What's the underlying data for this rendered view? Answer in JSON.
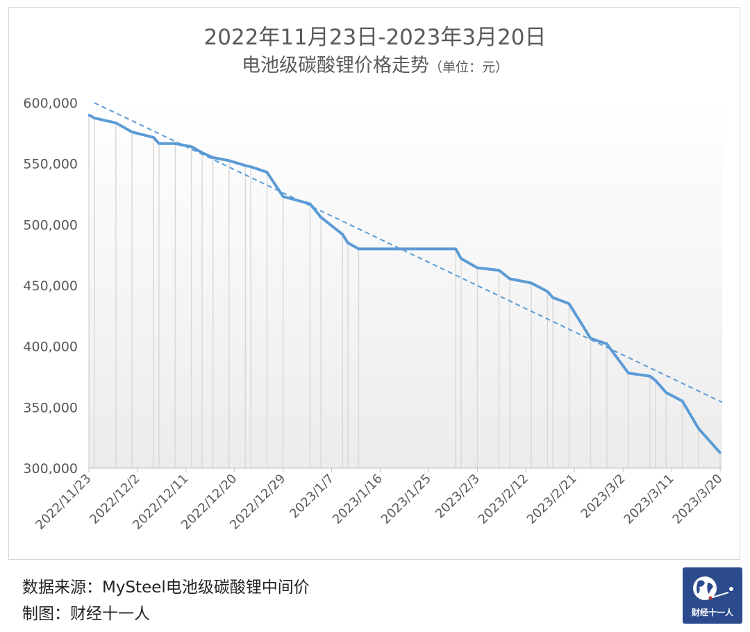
{
  "title": "2022年11月23日-2023年3月20日",
  "subtitle": "电池级碳酸锂价格走势",
  "unit": "（单位：元）",
  "source": "数据来源：MySteel电池级碳酸锂中间价",
  "maker": "制图：财经十一人",
  "logo_text": "财经十一人",
  "colors": {
    "line": "#5b9bd5",
    "trend": "#5b9bd5",
    "droplines": "#d9d9d9",
    "logo": "#2b4b8c"
  },
  "chart_data": {
    "type": "line",
    "title": "2022年11月23日-2023年3月20日 电池级碳酸锂价格走势（单位：元）",
    "ylim": [
      300000,
      600000
    ],
    "yticks": [
      "300,000",
      "350,000",
      "400,000",
      "450,000",
      "500,000",
      "550,000",
      "600,000"
    ],
    "ytick_values": [
      300000,
      350000,
      400000,
      450000,
      500000,
      550000,
      600000
    ],
    "xrange": [
      "2022-11-23",
      "2023-03-20"
    ],
    "xticks": [
      "2022/11/23",
      "2022/12/2",
      "2022/12/11",
      "2022/12/20",
      "2022/12/29",
      "2023/1/7",
      "2023/1/16",
      "2023/1/25",
      "2023/2/3",
      "2023/2/12",
      "2023/2/21",
      "2023/3/2",
      "2023/3/11",
      "2023/3/20"
    ],
    "xtick_dates": [
      "2022-11-23",
      "2022-12-02",
      "2022-12-11",
      "2022-12-20",
      "2022-12-29",
      "2023-01-07",
      "2023-01-16",
      "2023-01-25",
      "2023-02-03",
      "2023-02-12",
      "2023-02-21",
      "2023-03-02",
      "2023-03-11",
      "2023-03-20"
    ],
    "drop_lines": true,
    "legend": "none",
    "series": [
      {
        "points": [
          [
            "2022-11-23",
            590000
          ],
          [
            "2022-11-24",
            587500
          ],
          [
            "2022-11-28",
            583500
          ],
          [
            "2022-12-01",
            576000
          ],
          [
            "2022-12-05",
            571500
          ],
          [
            "2022-12-06",
            566500
          ],
          [
            "2022-12-09",
            566500
          ],
          [
            "2022-12-12",
            564000
          ],
          [
            "2022-12-14",
            559000
          ],
          [
            "2022-12-16",
            555000
          ],
          [
            "2022-12-19",
            552500
          ],
          [
            "2022-12-22",
            548500
          ],
          [
            "2022-12-23",
            547500
          ],
          [
            "2022-12-26",
            543000
          ],
          [
            "2022-12-29",
            523000
          ],
          [
            "2023-01-03",
            517000
          ],
          [
            "2023-01-05",
            506000
          ],
          [
            "2023-01-09",
            492000
          ],
          [
            "2023-01-10",
            485000
          ],
          [
            "2023-01-12",
            480000
          ],
          [
            "2023-01-30",
            480000
          ],
          [
            "2023-01-31",
            472000
          ],
          [
            "2023-02-03",
            464500
          ],
          [
            "2023-02-07",
            462500
          ],
          [
            "2023-02-09",
            455500
          ],
          [
            "2023-02-13",
            452000
          ],
          [
            "2023-02-16",
            445000
          ],
          [
            "2023-02-17",
            440000
          ],
          [
            "2023-02-20",
            435000
          ],
          [
            "2023-02-24",
            406500
          ],
          [
            "2023-02-27",
            402000
          ],
          [
            "2023-03-03",
            378000
          ],
          [
            "2023-03-07",
            375500
          ],
          [
            "2023-03-08",
            372000
          ],
          [
            "2023-03-10",
            362000
          ],
          [
            "2023-03-13",
            355000
          ],
          [
            "2023-03-16",
            332500
          ],
          [
            "2023-03-20",
            312500
          ]
        ]
      }
    ],
    "trendline": {
      "type": "linear",
      "style": "dashed",
      "points": [
        [
          "2022-11-24",
          600000
        ],
        [
          "2023-03-20",
          354000
        ]
      ]
    }
  }
}
